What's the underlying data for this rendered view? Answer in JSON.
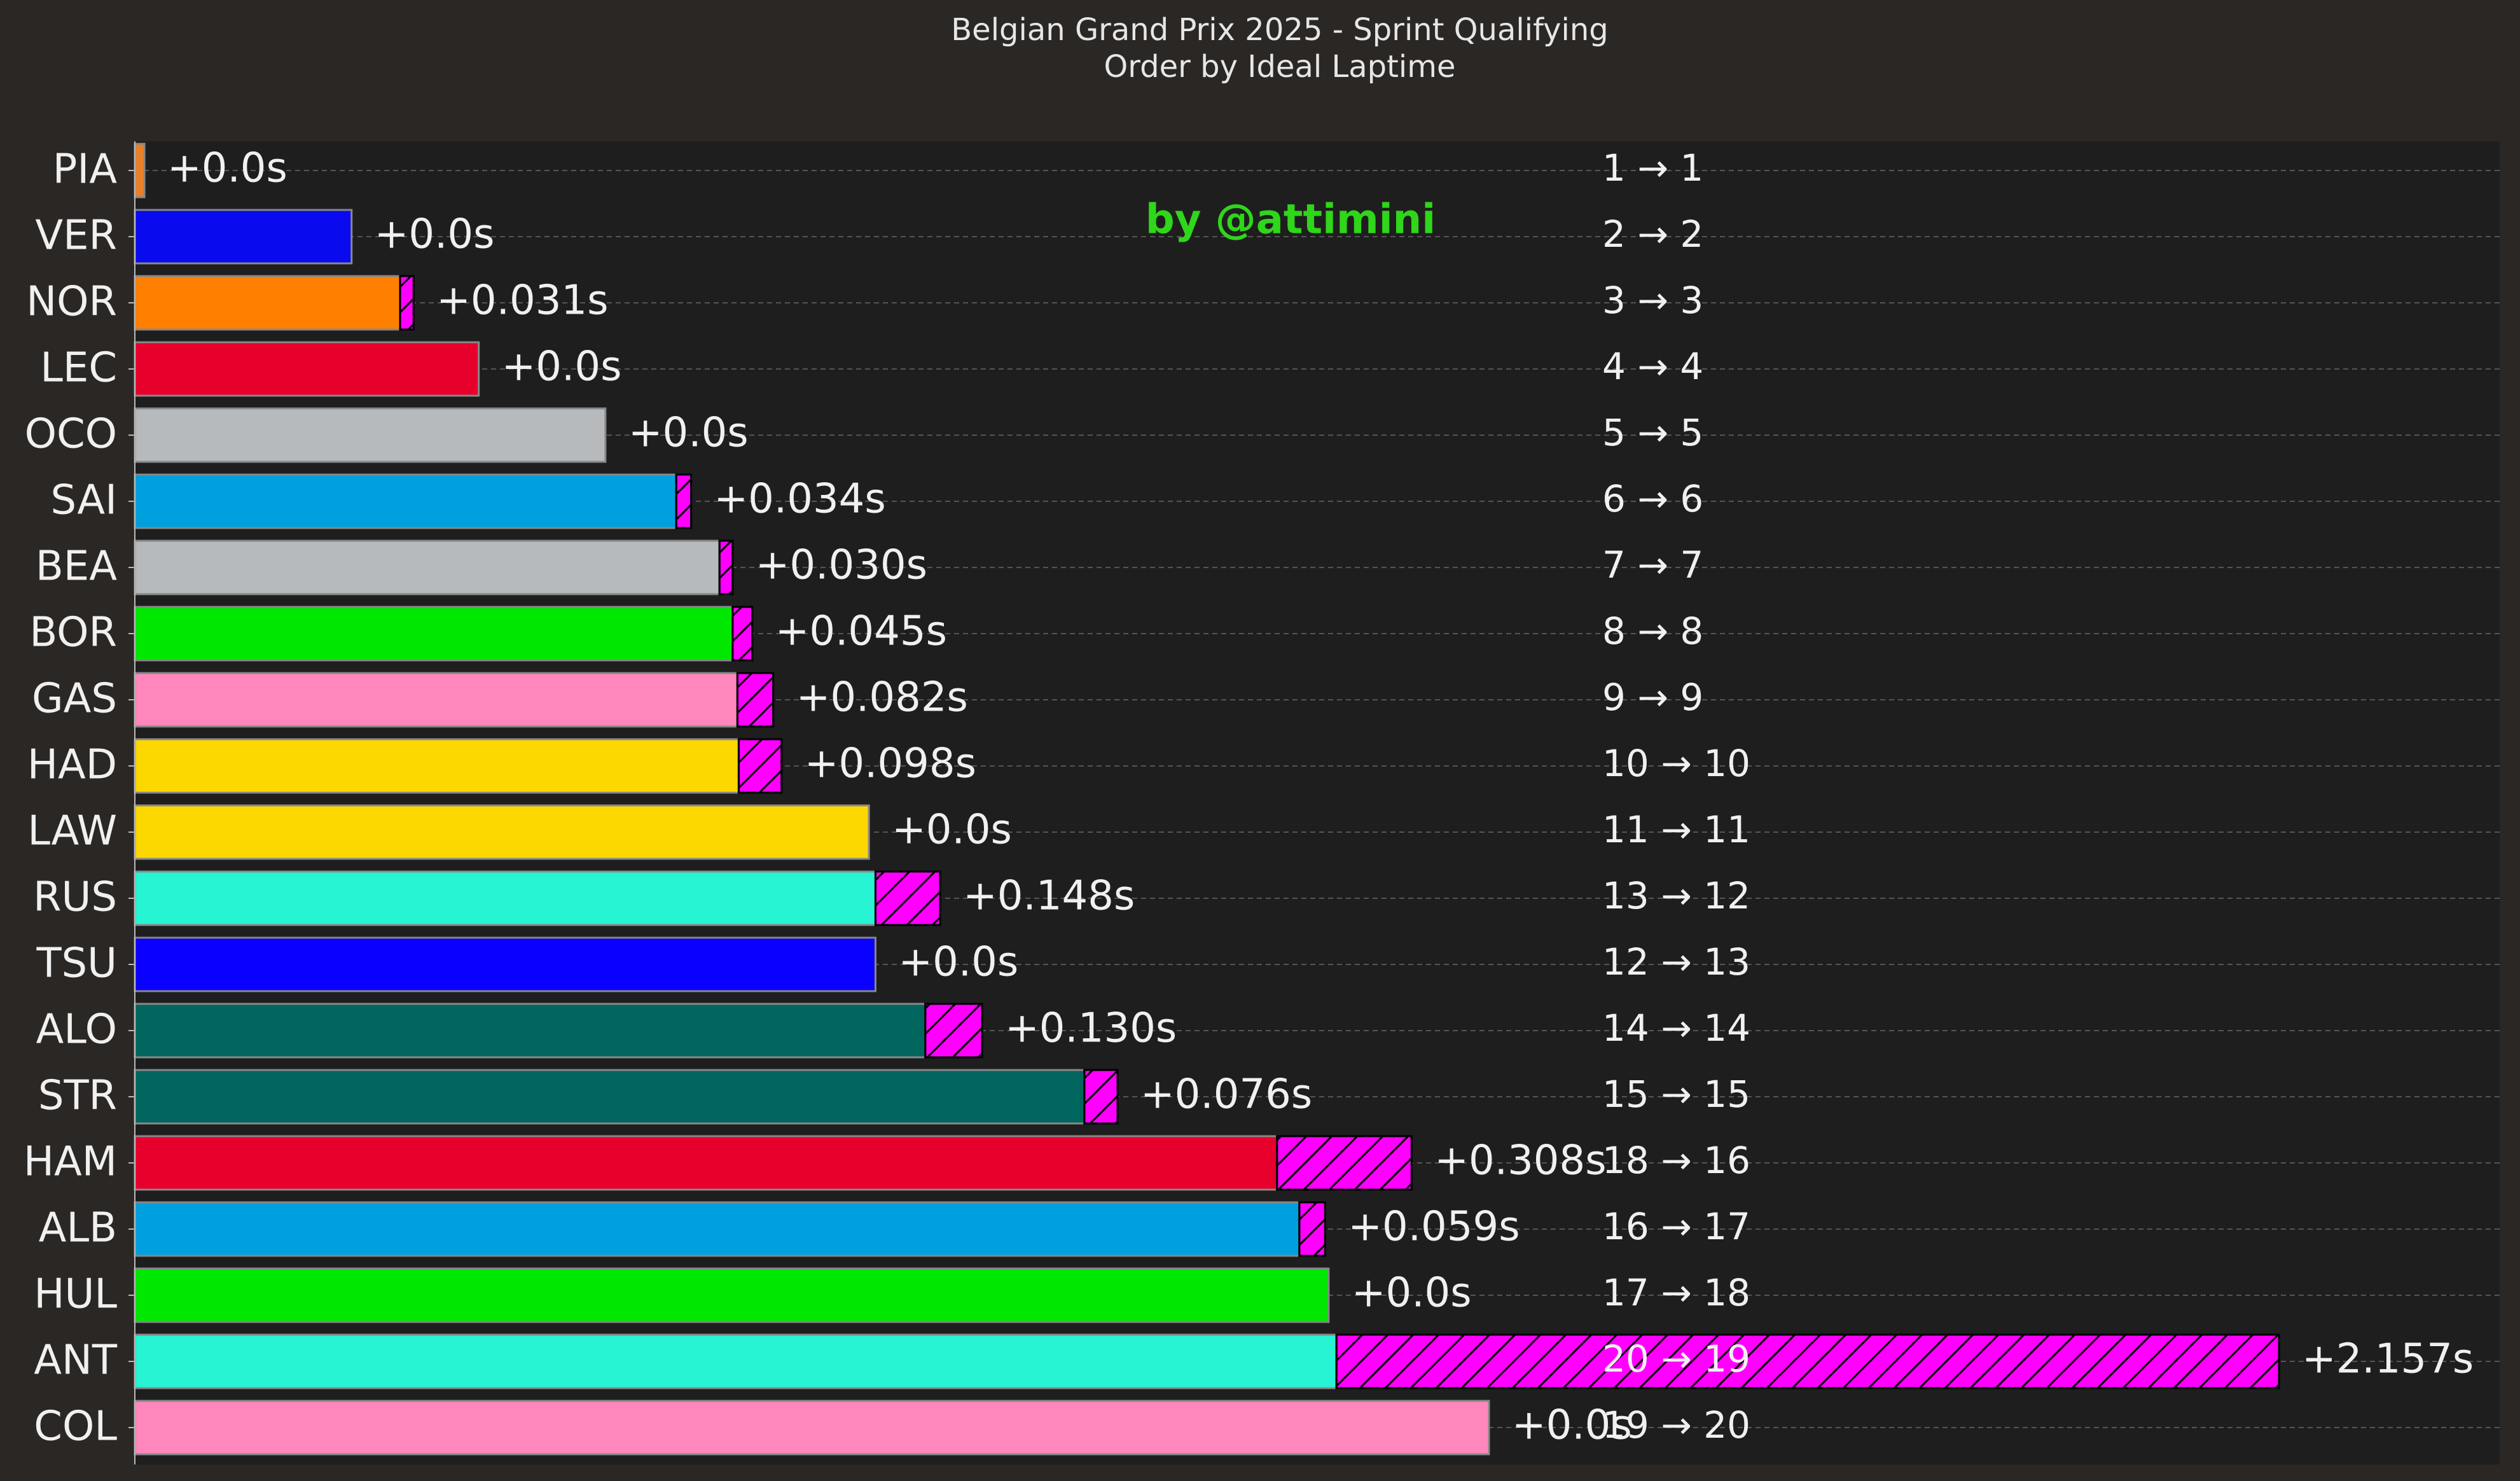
{
  "chart_data": {
    "type": "bar",
    "orientation": "horizontal",
    "title": "Belgian Grand Prix 2025 - Sprint Qualifying",
    "subtitle": "Order by Ideal Laptime",
    "annotation": "by @attimini",
    "categories": [
      "PIA",
      "VER",
      "NOR",
      "LEC",
      "OCO",
      "SAI",
      "BEA",
      "BOR",
      "GAS",
      "HAD",
      "LAW",
      "RUS",
      "TSU",
      "ALO",
      "STR",
      "HAM",
      "ALB",
      "HUL",
      "ANT",
      "COL"
    ],
    "series": [
      {
        "values": [
          0,
          0.474,
          0.585,
          0.765,
          1.055,
          1.217,
          1.316,
          1.346,
          1.357,
          1.36,
          1.658,
          1.673,
          1.673,
          1.787,
          2.151,
          2.592,
          2.643,
          2.71,
          2.728,
          3.077
        ],
        "colors": [
          "#e8802a",
          "#0a0aef",
          "#ff8000",
          "#e8002d",
          "#b6babd",
          "#00a0de",
          "#b6babd",
          "#00e701",
          "#ff87bc",
          "#fcd700",
          "#fcd700",
          "#27f4d2",
          "#0a00ff",
          "#00665e",
          "#00665e",
          "#e8002d",
          "#00a0de",
          "#00e701",
          "#27f4d2",
          "#ff87bc"
        ]
      },
      {
        "values": [
          0,
          0,
          0.031,
          0,
          0,
          0.034,
          0.03,
          0.045,
          0.082,
          0.098,
          0,
          0.148,
          0,
          0.13,
          0.076,
          0.308,
          0.059,
          0,
          2.157,
          0
        ],
        "value_labels": [
          "+0.0s",
          "+0.0s",
          "+0.031s",
          "+0.0s",
          "+0.0s",
          "+0.034s",
          "+0.030s",
          "+0.045s",
          "+0.082s",
          "+0.098s",
          "+0.0s",
          "+0.148s",
          "+0.0s",
          "+0.130s",
          "+0.076s",
          "+0.308s",
          "+0.059s",
          "+0.0s",
          "+2.157s",
          "+0.0s"
        ],
        "color": "#ff00ff",
        "hatch": "//"
      }
    ],
    "positions": [
      "1 → 1",
      "2 → 2",
      "3 → 3",
      "4 → 4",
      "5 → 5",
      "6 → 6",
      "7 → 7",
      "8 → 8",
      "9 → 9",
      "10 → 10",
      "11 → 11",
      "13 → 12",
      "12 → 13",
      "14 → 14",
      "15 → 15",
      "18 → 16",
      "16 → 17",
      "17 → 18",
      "20 → 19",
      "19 → 20"
    ],
    "xlim": [
      -0.022,
      5.39
    ],
    "grid": true
  }
}
